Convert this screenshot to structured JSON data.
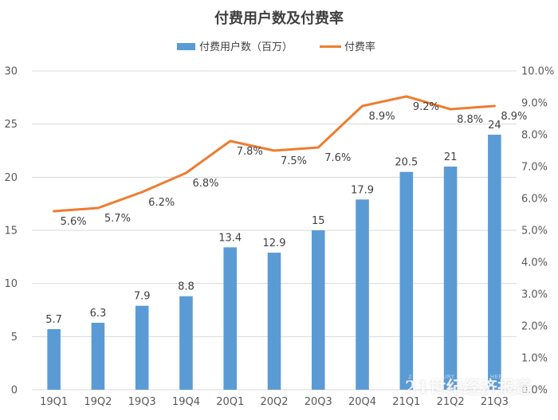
{
  "chart_data": {
    "type": "bar",
    "title": "付费用户数及付费率",
    "categories": [
      "19Q1",
      "19Q2",
      "19Q3",
      "19Q4",
      "20Q1",
      "20Q2",
      "20Q3",
      "20Q4",
      "21Q1",
      "21Q2",
      "21Q3"
    ],
    "series": [
      {
        "name": "付费用户数（百万）",
        "type": "bar",
        "axis": "left",
        "color": "#5B9BD5",
        "values": [
          5.7,
          6.3,
          7.9,
          8.8,
          13.4,
          12.9,
          15,
          17.9,
          20.5,
          21,
          24
        ],
        "labels": [
          "5.7",
          "6.3",
          "7.9",
          "8.8",
          "13.4",
          "12.9",
          "15",
          "17.9",
          "20.5",
          "21",
          "24"
        ]
      },
      {
        "name": "付费率",
        "type": "line",
        "axis": "right",
        "color": "#ED7D31",
        "values": [
          5.6,
          5.7,
          6.2,
          6.8,
          7.8,
          7.5,
          7.6,
          8.9,
          9.2,
          8.8,
          8.9
        ],
        "labels": [
          "5.6%",
          "5.7%",
          "6.2%",
          "6.8%",
          "7.8%",
          "7.5%",
          "7.6%",
          "8.9%",
          "9.2%",
          "8.8%",
          "8.9%"
        ]
      }
    ],
    "y_left": {
      "range": [
        0,
        30
      ],
      "ticks": [
        "0",
        "5",
        "10",
        "15",
        "20",
        "25",
        "30"
      ]
    },
    "y_right": {
      "range": [
        0,
        10
      ],
      "ticks": [
        "0.0%",
        "1.0%",
        "2.0%",
        "3.0%",
        "4.0%",
        "5.0%",
        "6.0%",
        "7.0%",
        "8.0%",
        "9.0%",
        "10.0%"
      ]
    },
    "legend_position": "top",
    "grid": "horizontal"
  },
  "watermark": {
    "text": "21世纪经济报道",
    "subtext": "21ST CENTURY BUSINESS HERALD"
  }
}
